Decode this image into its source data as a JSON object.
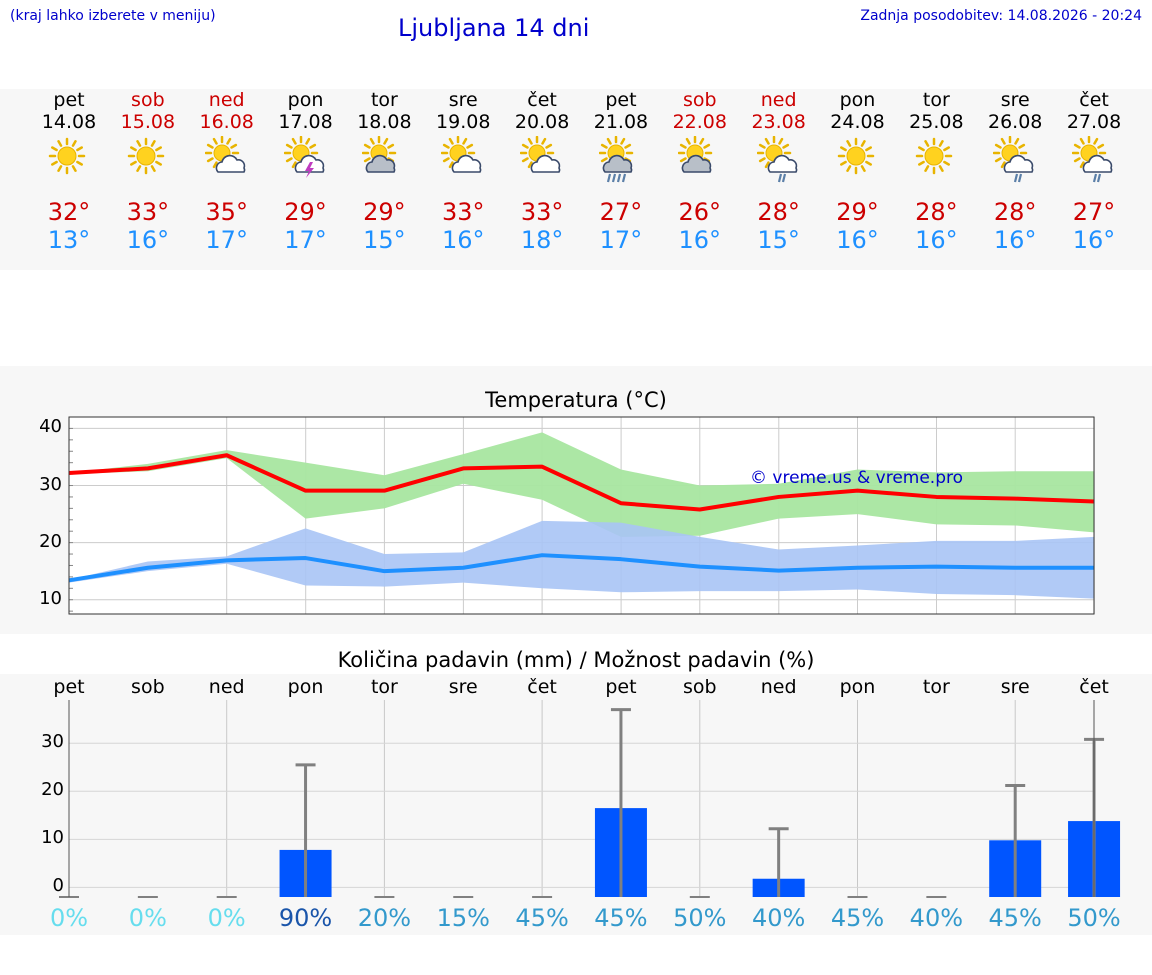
{
  "header": {
    "left": "(kraj lahko izberete v meniju)",
    "title": "Ljubljana 14 dni",
    "right": "Zadnja posodobitev: 14.08.2026 - 20:24"
  },
  "colors": {
    "max_line": "#ff0000",
    "max_band": "#a8e6a0",
    "min_line": "#1e90ff",
    "min_band": "#a9c4f5",
    "bar": "#0055ff",
    "whisker": "#808080"
  },
  "days": [
    {
      "name": "pet",
      "date": "14.08",
      "weekend": false,
      "icon": "sun-icon",
      "tmax": "32°",
      "tmin": "13°"
    },
    {
      "name": "sob",
      "date": "15.08",
      "weekend": true,
      "icon": "sun-icon",
      "tmax": "33°",
      "tmin": "16°"
    },
    {
      "name": "ned",
      "date": "16.08",
      "weekend": true,
      "icon": "sun-cloud-icon",
      "tmax": "35°",
      "tmin": "17°"
    },
    {
      "name": "pon",
      "date": "17.08",
      "weekend": false,
      "icon": "sun-thunder-icon",
      "tmax": "29°",
      "tmin": "17°"
    },
    {
      "name": "tor",
      "date": "18.08",
      "weekend": false,
      "icon": "sun-dark-cloud-icon",
      "tmax": "29°",
      "tmin": "15°"
    },
    {
      "name": "sre",
      "date": "19.08",
      "weekend": false,
      "icon": "sun-cloud-icon",
      "tmax": "33°",
      "tmin": "16°"
    },
    {
      "name": "čet",
      "date": "20.08",
      "weekend": false,
      "icon": "sun-cloud-icon",
      "tmax": "33°",
      "tmin": "18°"
    },
    {
      "name": "pet",
      "date": "21.08",
      "weekend": false,
      "icon": "sun-rain-heavy-icon",
      "tmax": "27°",
      "tmin": "17°"
    },
    {
      "name": "sob",
      "date": "22.08",
      "weekend": true,
      "icon": "sun-dark-cloud-icon",
      "tmax": "26°",
      "tmin": "16°"
    },
    {
      "name": "ned",
      "date": "23.08",
      "weekend": true,
      "icon": "sun-rain-icon",
      "tmax": "28°",
      "tmin": "15°"
    },
    {
      "name": "pon",
      "date": "24.08",
      "weekend": false,
      "icon": "sun-icon",
      "tmax": "29°",
      "tmin": "16°"
    },
    {
      "name": "tor",
      "date": "25.08",
      "weekend": false,
      "icon": "sun-icon",
      "tmax": "28°",
      "tmin": "16°"
    },
    {
      "name": "sre",
      "date": "26.08",
      "weekend": false,
      "icon": "sun-rain-icon",
      "tmax": "28°",
      "tmin": "16°"
    },
    {
      "name": "čet",
      "date": "27.08",
      "weekend": false,
      "icon": "sun-rain-icon",
      "tmax": "27°",
      "tmin": "16°"
    }
  ],
  "copyright": "© vreme.us & vreme.pro",
  "chart_data": [
    {
      "type": "line",
      "title": "Temperatura (°C)",
      "ylim": [
        7.5,
        42
      ],
      "yticks": [
        10,
        20,
        30,
        40
      ],
      "x": [
        0,
        1,
        2,
        3,
        4,
        5,
        6,
        7,
        8,
        9,
        10,
        11,
        12,
        13
      ],
      "grid": true,
      "series": [
        {
          "values": [
            32.2,
            33.0,
            35.3,
            29.1,
            29.1,
            33.0,
            33.3,
            26.9,
            25.8,
            28.0,
            29.1,
            28.0,
            27.7,
            27.2
          ]
        },
        {
          "values": [
            13.4,
            15.6,
            16.9,
            17.3,
            15.0,
            15.6,
            17.8,
            17.1,
            15.8,
            15.1,
            15.6,
            15.8,
            15.6,
            15.6
          ]
        }
      ],
      "bands": [
        {
          "lower": [
            32.0,
            32.5,
            34.8,
            24.2,
            26.0,
            30.3,
            27.5,
            21.0,
            21.2,
            24.2,
            25.0,
            23.2,
            23.0,
            21.8
          ],
          "upper": [
            32.2,
            33.8,
            36.2,
            34.0,
            31.8,
            35.5,
            39.3,
            32.8,
            30.0,
            30.3,
            32.8,
            32.3,
            32.5,
            32.5
          ]
        },
        {
          "lower": [
            13.0,
            15.0,
            16.3,
            12.5,
            12.3,
            13.0,
            12.0,
            11.3,
            11.5,
            11.5,
            11.8,
            11.0,
            10.8,
            10.2
          ],
          "upper": [
            13.5,
            16.7,
            17.6,
            22.5,
            18.0,
            18.3,
            23.8,
            23.5,
            21.0,
            18.8,
            19.5,
            20.3,
            20.3,
            21.0
          ]
        }
      ]
    },
    {
      "type": "bar",
      "title": "Količina padavin (mm) / Možnost padavin (%)",
      "ylim": [
        -2,
        39
      ],
      "yticks": [
        0,
        10,
        20,
        30
      ],
      "ytick_labels": [
        "0",
        "10",
        "20",
        "30"
      ],
      "categories": [
        "pet",
        "sob",
        "ned",
        "pon",
        "tor",
        "sre",
        "čet",
        "pet",
        "sob",
        "ned",
        "pon",
        "tor",
        "sre",
        "čet"
      ],
      "values": [
        0,
        0,
        0,
        7.8,
        0,
        0,
        0,
        16.5,
        0,
        1.8,
        0,
        0,
        9.8,
        13.8
      ],
      "whisker_max": [
        0,
        0,
        0,
        25.5,
        0,
        0,
        0,
        37.0,
        0,
        12.2,
        0,
        0,
        21.2,
        30.8
      ],
      "probability": [
        "0%",
        "0%",
        "0%",
        "90%",
        "20%",
        "15%",
        "45%",
        "45%",
        "50%",
        "40%",
        "45%",
        "40%",
        "45%",
        "50%"
      ],
      "probability_colors": [
        "#66ddee",
        "#66ddee",
        "#66ddee",
        "#1a55aa",
        "#3399cc",
        "#3399cc",
        "#3399cc",
        "#3399cc",
        "#3399cc",
        "#3399cc",
        "#3399cc",
        "#3399cc",
        "#3399cc",
        "#3399cc"
      ]
    }
  ]
}
